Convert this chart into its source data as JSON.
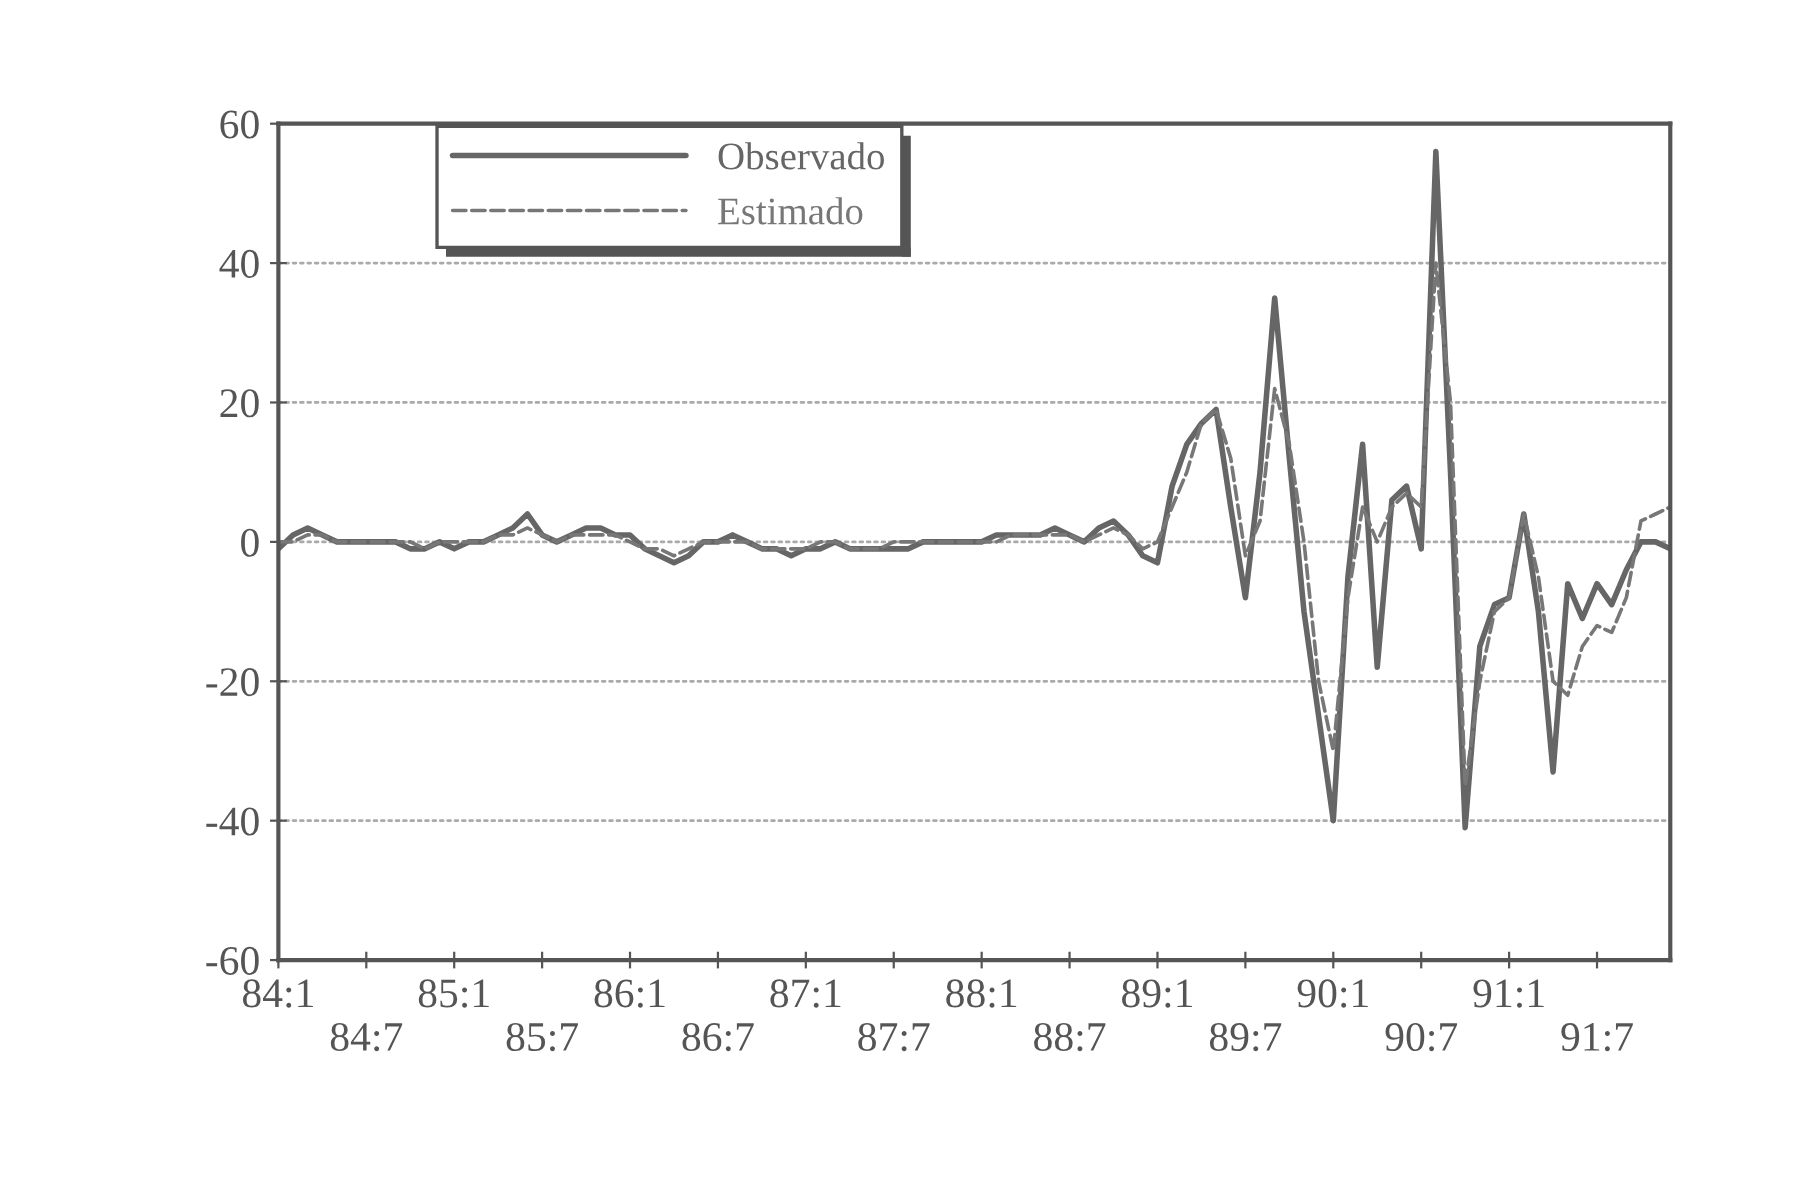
{
  "chart_data": {
    "type": "line",
    "categories": [
      "84:1",
      null,
      null,
      null,
      null,
      null,
      "84:7",
      null,
      null,
      null,
      null,
      null,
      "85:1",
      null,
      null,
      null,
      null,
      null,
      "85:7",
      null,
      null,
      null,
      null,
      null,
      "86:1",
      null,
      null,
      null,
      null,
      null,
      "86:7",
      null,
      null,
      null,
      null,
      null,
      "87:1",
      null,
      null,
      null,
      null,
      null,
      "87:7",
      null,
      null,
      null,
      null,
      null,
      "88:1",
      null,
      null,
      null,
      null,
      null,
      "88:7",
      null,
      null,
      null,
      null,
      null,
      "89:1",
      null,
      null,
      null,
      null,
      null,
      "89:7",
      null,
      null,
      null,
      null,
      null,
      "90:1",
      null,
      null,
      null,
      null,
      null,
      "90:7",
      null,
      null,
      null,
      null,
      null,
      "91:1",
      null,
      null,
      null,
      null,
      null,
      "91:7",
      null,
      null,
      null,
      null,
      null
    ],
    "series": [
      {
        "name": "Observado",
        "color": "#666666",
        "line_style": "solid",
        "values": [
          -1,
          1,
          2,
          1,
          0,
          0,
          0,
          0,
          0,
          -1,
          -1,
          0,
          -1,
          0,
          0,
          1,
          2,
          4,
          1,
          0,
          1,
          2,
          2,
          1,
          1,
          -1,
          -2,
          -3,
          -2,
          0,
          0,
          1,
          0,
          -1,
          -1,
          -2,
          -1,
          -1,
          0,
          -1,
          -1,
          -1,
          -1,
          -1,
          0,
          0,
          0,
          0,
          0,
          1,
          1,
          1,
          1,
          2,
          1,
          0,
          2,
          3,
          1,
          -2,
          -3,
          8,
          14,
          17,
          19,
          5,
          -8,
          10,
          35,
          12,
          -10,
          -25,
          -40,
          -5,
          14,
          -18,
          6,
          8,
          -1,
          56,
          10,
          -41,
          -15,
          -9,
          -8,
          4,
          -10,
          -33,
          -6,
          -11,
          -6,
          -9,
          -4,
          0,
          0,
          -1
        ]
      },
      {
        "name": "Estimado",
        "color": "#777777",
        "line_style": "dashed",
        "values": [
          0,
          0,
          1,
          1,
          0,
          0,
          0,
          0,
          0,
          0,
          -1,
          0,
          0,
          0,
          0,
          1,
          1,
          2,
          1,
          0,
          1,
          1,
          1,
          1,
          0,
          -1,
          -1,
          -2,
          -1,
          0,
          0,
          0,
          0,
          -1,
          -1,
          -1,
          -1,
          0,
          0,
          -1,
          -1,
          -1,
          0,
          0,
          0,
          0,
          0,
          0,
          0,
          0,
          1,
          1,
          1,
          1,
          1,
          0,
          1,
          2,
          1,
          -1,
          0,
          5,
          10,
          17,
          19,
          12,
          -2,
          3,
          22,
          14,
          0,
          -20,
          -30,
          -8,
          5,
          0,
          5,
          7,
          5,
          40,
          20,
          -35,
          -20,
          -10,
          -8,
          4,
          -5,
          -20,
          -22,
          -15,
          -12,
          -13,
          -8,
          3,
          4,
          5
        ]
      }
    ],
    "ylim": [
      -60,
      60
    ],
    "yticks": [
      -60,
      -40,
      -20,
      0,
      20,
      40,
      60
    ],
    "grid": "y",
    "legend": "top left"
  }
}
